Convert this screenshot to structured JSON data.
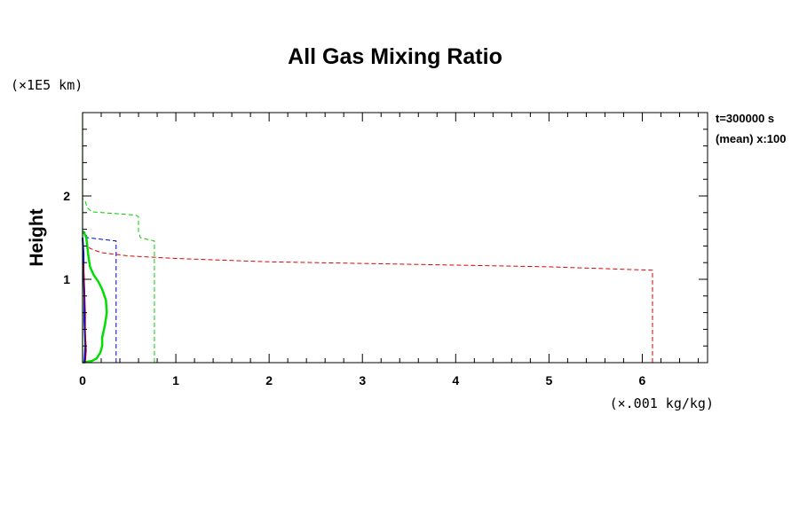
{
  "chart_data": {
    "type": "line",
    "title": "All Gas Mixing Ratio",
    "ylabel": "Height",
    "xunit": "(×.001 kg/kg)",
    "yunit": "(×1E5 km)",
    "annotations": [
      "t=300000 s",
      "(mean) x:100"
    ],
    "xlim": [
      0,
      6.7
    ],
    "ylim": [
      0,
      3.0
    ],
    "x_ticks": [
      0,
      1,
      2,
      3,
      4,
      5,
      6
    ],
    "y_ticks": [
      1,
      2
    ],
    "x_minor_step": 0.2,
    "y_minor_step": 0.2,
    "grid": false,
    "legend": "none",
    "series": [
      {
        "color": "#dd0000",
        "dash": true,
        "width": 1,
        "points": [
          [
            6.11,
            0
          ],
          [
            6.11,
            1.11
          ],
          [
            5.8,
            1.12
          ],
          [
            5.0,
            1.15
          ],
          [
            4.0,
            1.17
          ],
          [
            3.0,
            1.19
          ],
          [
            2.0,
            1.21
          ],
          [
            1.0,
            1.25
          ],
          [
            0.5,
            1.28
          ],
          [
            0.2,
            1.32
          ],
          [
            0.08,
            1.37
          ],
          [
            0.05,
            1.42
          ],
          [
            0.03,
            1.48
          ]
        ]
      },
      {
        "color": "#00cc00",
        "dash": true,
        "width": 1,
        "points": [
          [
            0.77,
            0
          ],
          [
            0.77,
            1.46
          ],
          [
            0.62,
            1.5
          ],
          [
            0.6,
            1.58
          ],
          [
            0.6,
            1.75
          ],
          [
            0.57,
            1.77
          ],
          [
            0.1,
            1.81
          ],
          [
            0.05,
            1.86
          ],
          [
            0.03,
            1.93
          ],
          [
            0.0,
            1.97
          ]
        ]
      },
      {
        "color": "#0000dd",
        "dash": true,
        "width": 1,
        "points": [
          [
            0.36,
            0
          ],
          [
            0.36,
            1.46
          ],
          [
            0.05,
            1.5
          ],
          [
            0.03,
            1.56
          ],
          [
            0.0,
            1.58
          ]
        ]
      },
      {
        "color": "#00dd00",
        "dash": false,
        "width": 2.5,
        "points": [
          [
            0,
            0
          ],
          [
            0.1,
            0.02
          ],
          [
            0.15,
            0.05
          ],
          [
            0.19,
            0.12
          ],
          [
            0.21,
            0.2
          ],
          [
            0.21,
            0.3
          ],
          [
            0.24,
            0.45
          ],
          [
            0.26,
            0.6
          ],
          [
            0.25,
            0.75
          ],
          [
            0.21,
            0.88
          ],
          [
            0.17,
            0.97
          ],
          [
            0.12,
            1.05
          ],
          [
            0.08,
            1.15
          ],
          [
            0.06,
            1.3
          ],
          [
            0.05,
            1.4
          ],
          [
            0.04,
            1.5
          ],
          [
            0.02,
            1.55
          ],
          [
            0.0,
            1.57
          ]
        ]
      },
      {
        "color": "#0000dd",
        "dash": false,
        "width": 2,
        "points": [
          [
            0.02,
            0
          ],
          [
            0.03,
            0.2
          ],
          [
            0.02,
            0.5
          ],
          [
            0.02,
            0.8
          ],
          [
            0.01,
            1.1
          ],
          [
            0.01,
            1.3
          ],
          [
            0.0,
            1.5
          ]
        ]
      },
      {
        "color": "#aa0000",
        "dash": false,
        "width": 1,
        "points": [
          [
            0.03,
            0
          ],
          [
            0.04,
            0.15
          ],
          [
            0.03,
            0.35
          ],
          [
            0.03,
            0.6
          ],
          [
            0.02,
            0.9
          ],
          [
            0.01,
            1.2
          ]
        ]
      },
      {
        "color": "#00cc00",
        "dash": false,
        "width": 1.2,
        "points": [
          [
            0.0,
            0
          ],
          [
            0.0,
            3.0
          ]
        ]
      }
    ]
  }
}
